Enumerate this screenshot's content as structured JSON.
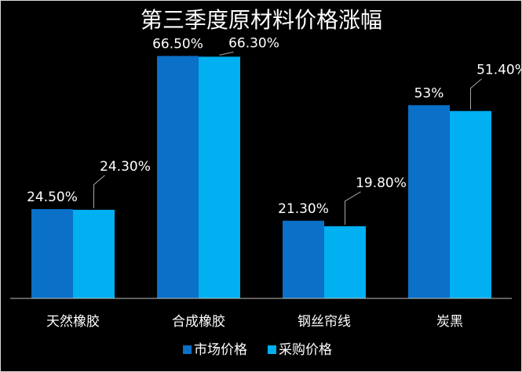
{
  "chart_data": {
    "type": "bar",
    "title": "第三季度原材料价格涨幅",
    "categories": [
      "天然橡胶",
      "合成橡胶",
      "钢丝帘线",
      "炭黑"
    ],
    "series": [
      {
        "name": "市场价格",
        "values": [
          24.5,
          66.5,
          21.3,
          53
        ],
        "labels": [
          "24.50%",
          "66.50%",
          "21.30%",
          "53%"
        ],
        "color": "#0a70c8"
      },
      {
        "name": "采购价格",
        "values": [
          24.3,
          66.3,
          19.8,
          51.4
        ],
        "labels": [
          "24.30%",
          "66.30%",
          "19.80%",
          "51.40%"
        ],
        "color": "#00b0f0"
      }
    ],
    "ylim": [
      0,
      70
    ],
    "legend_position": "bottom",
    "grid": false,
    "background": "#000000"
  }
}
